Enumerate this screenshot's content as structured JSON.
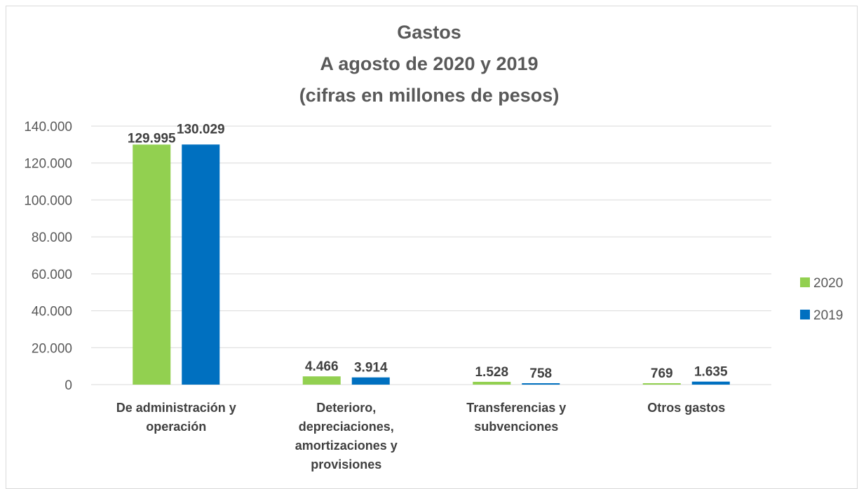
{
  "chart_data": {
    "type": "bar",
    "title": [
      "Gastos",
      "A agosto de 2020 y 2019",
      "(cifras en millones de pesos)"
    ],
    "categories": [
      [
        "De administración y",
        "operación"
      ],
      [
        "Deterioro,",
        "depreciaciones,",
        "amortizaciones y",
        "provisiones"
      ],
      [
        "Transferencias y",
        "subvenciones"
      ],
      [
        "Otros gastos"
      ]
    ],
    "series": [
      {
        "name": "2020",
        "color": "#92d050",
        "values": [
          129995,
          4466,
          1528,
          769
        ],
        "labels": [
          "129.995",
          "4.466",
          "1.528",
          "769"
        ]
      },
      {
        "name": "2019",
        "color": "#0070c0",
        "values": [
          130029,
          3914,
          758,
          1635
        ],
        "labels": [
          "130.029",
          "3.914",
          "758",
          "1.635"
        ]
      }
    ],
    "yticks": [
      0,
      20000,
      40000,
      60000,
      80000,
      100000,
      120000,
      140000
    ],
    "ytick_labels": [
      "0",
      "20.000",
      "40.000",
      "60.000",
      "80.000",
      "100.000",
      "120.000",
      "140.000"
    ],
    "ylim": [
      0,
      140000
    ],
    "grid": true,
    "legend_position": "right",
    "gridline_color": "#d9d9d9"
  }
}
